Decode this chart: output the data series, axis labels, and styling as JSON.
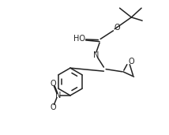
{
  "bg_color": "#ffffff",
  "line_color": "#222222",
  "line_width": 1.1,
  "font_size": 7.0,
  "fig_width": 2.14,
  "fig_height": 1.71,
  "dpi": 100,
  "xlim": [
    0,
    10
  ],
  "ylim": [
    0,
    8
  ]
}
